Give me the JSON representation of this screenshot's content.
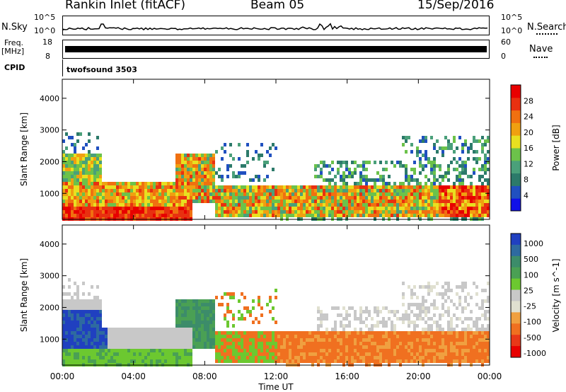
{
  "header": {
    "station": "Rankin Inlet (fitACF)",
    "beam": "Beam 05",
    "date": "15/Sep/2016"
  },
  "panels": {
    "nsky": {
      "label": "N.Sky",
      "left_ticks": [
        "10^5",
        "10^0"
      ],
      "right_ticks": [
        "10^5",
        "10^0"
      ],
      "right_label": "N.Search"
    },
    "freq": {
      "label": "Freq.",
      "unit": "[MHz]",
      "left_ticks": [
        "18",
        "8"
      ],
      "right_ticks": [
        "60",
        "0"
      ],
      "right_label": "Nave"
    },
    "cpid": {
      "label": "CPID",
      "value": "twofsound 3503"
    }
  },
  "colors": {
    "power_scale": [
      "#1010e8",
      "#2050c0",
      "#2c7a6a",
      "#4aa07a",
      "#6cc24a",
      "#e8e020",
      "#f0a010",
      "#f07010",
      "#e83010",
      "#e80000"
    ],
    "velocity_scale": [
      "#2040c0",
      "#2e6aa0",
      "#3c8c6a",
      "#4aa054",
      "#6cc830",
      "#c8c8c8",
      "#e0e0d0",
      "#f0a040",
      "#f07020",
      "#e83818",
      "#e80000"
    ]
  },
  "chart_data": [
    {
      "type": "heatmap",
      "name": "power",
      "ylabel": "Slant Range [km]",
      "yticks": [
        1000,
        2000,
        3000,
        4000
      ],
      "ylim": [
        180,
        4600
      ],
      "xlim": [
        0,
        24
      ],
      "colorbar": {
        "label": "Power [dB]",
        "ticks": [
          4,
          8,
          12,
          16,
          20,
          24,
          28
        ],
        "range": [
          0,
          32
        ]
      }
    },
    {
      "type": "heatmap",
      "name": "velocity",
      "ylabel": "Slant Range [km]",
      "yticks": [
        1000,
        2000,
        3000,
        4000
      ],
      "ylim": [
        180,
        4600
      ],
      "xlim": [
        0,
        24
      ],
      "xlabel": "Time UT",
      "xticks": [
        "00:00",
        "04:00",
        "08:00",
        "12:00",
        "16:00",
        "20:00",
        "00:00"
      ],
      "colorbar": {
        "label": "Velocity [m s^-1]",
        "ticks": [
          "1000",
          "500",
          "100",
          "25",
          "-25",
          "-100",
          "-500",
          "-1000"
        ]
      }
    }
  ]
}
